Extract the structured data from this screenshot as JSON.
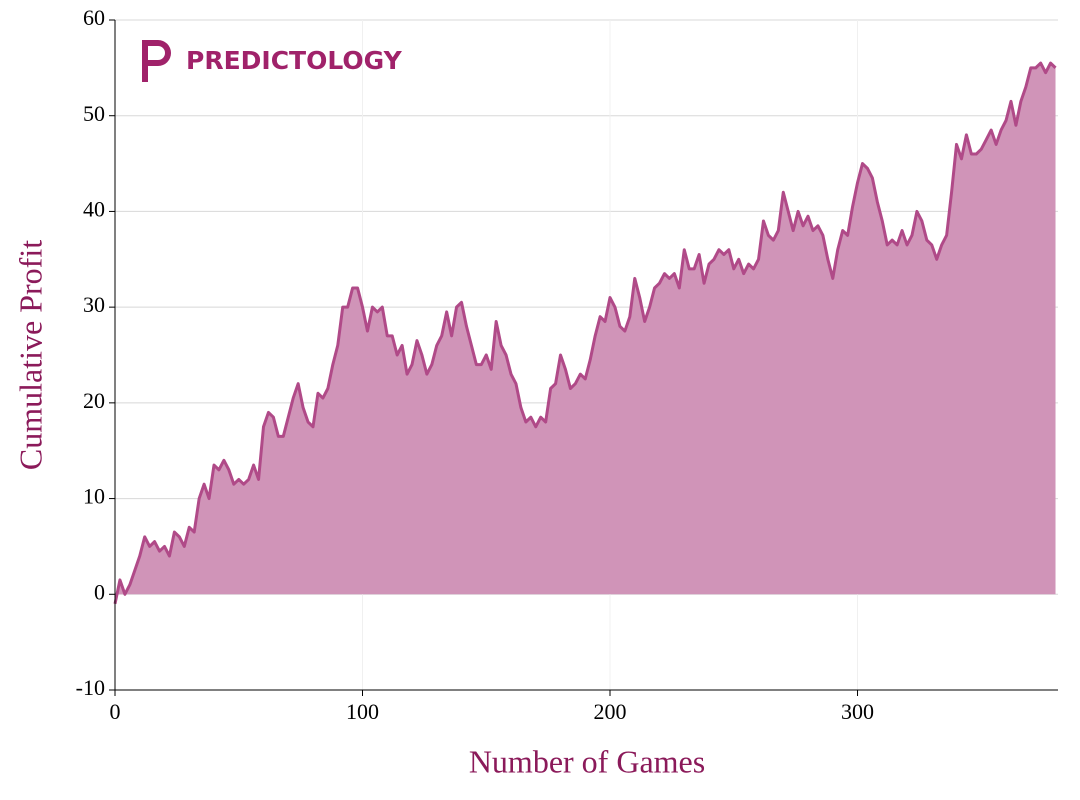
{
  "chart_data": {
    "type": "area",
    "logo": "PREDICTOLOGY",
    "xlabel": "Number of Games",
    "ylabel": "Cumulative Profit",
    "xlim": [
      0,
      381
    ],
    "ylim": [
      -10,
      60
    ],
    "xticks": [
      0,
      100,
      200,
      300
    ],
    "yticks": [
      -10,
      0,
      10,
      20,
      30,
      40,
      50,
      60
    ],
    "grid": true,
    "series": [
      {
        "name": "Cumulative Profit",
        "color": "#b04a88",
        "fill": "#d094b8",
        "x": [
          0,
          2,
          4,
          6,
          8,
          10,
          12,
          14,
          16,
          18,
          20,
          22,
          24,
          26,
          28,
          30,
          32,
          34,
          36,
          38,
          40,
          42,
          44,
          46,
          48,
          50,
          52,
          54,
          56,
          58,
          60,
          62,
          64,
          66,
          68,
          70,
          72,
          74,
          76,
          78,
          80,
          82,
          84,
          86,
          88,
          90,
          92,
          94,
          96,
          98,
          100,
          102,
          104,
          106,
          108,
          110,
          112,
          114,
          116,
          118,
          120,
          122,
          124,
          126,
          128,
          130,
          132,
          134,
          136,
          138,
          140,
          142,
          144,
          146,
          148,
          150,
          152,
          154,
          156,
          158,
          160,
          162,
          164,
          166,
          168,
          170,
          172,
          174,
          176,
          178,
          180,
          182,
          184,
          186,
          188,
          190,
          192,
          194,
          196,
          198,
          200,
          202,
          204,
          206,
          208,
          210,
          212,
          214,
          216,
          218,
          220,
          222,
          224,
          226,
          228,
          230,
          232,
          234,
          236,
          238,
          240,
          242,
          244,
          246,
          248,
          250,
          252,
          254,
          256,
          258,
          260,
          262,
          264,
          266,
          268,
          270,
          272,
          274,
          276,
          278,
          280,
          282,
          284,
          286,
          288,
          290,
          292,
          294,
          296,
          298,
          300,
          302,
          304,
          306,
          308,
          310,
          312,
          314,
          316,
          318,
          320,
          322,
          324,
          326,
          328,
          330,
          332,
          334,
          336,
          338,
          340,
          342,
          344,
          346,
          348,
          350,
          352,
          354,
          356,
          358,
          360,
          362,
          364,
          366,
          368,
          370,
          372,
          374,
          376,
          378,
          380
        ],
        "values": [
          -1,
          1.5,
          0,
          1,
          2.5,
          4,
          6,
          5,
          5.5,
          4.5,
          5,
          4,
          6.5,
          6,
          5,
          7,
          6.5,
          10,
          11.5,
          10,
          13.5,
          13,
          14,
          13,
          11.5,
          12,
          11.5,
          12,
          13.5,
          12,
          17.5,
          19,
          18.5,
          16.5,
          16.5,
          18.5,
          20.5,
          22,
          19.5,
          18,
          17.5,
          21,
          20.5,
          21.5,
          24,
          26,
          30,
          30,
          32,
          32,
          30,
          27.5,
          30,
          29.5,
          30,
          27,
          27,
          25,
          26,
          23,
          24,
          26.5,
          25,
          23,
          24,
          26,
          27,
          29.5,
          27,
          30,
          30.5,
          28,
          26,
          24,
          24,
          25,
          23.5,
          28.5,
          26,
          25,
          23,
          22,
          19.5,
          18,
          18.5,
          17.5,
          18.5,
          18,
          21.5,
          22,
          25,
          23.5,
          21.5,
          22,
          23,
          22.5,
          24.5,
          27,
          29,
          28.5,
          31,
          30,
          28,
          27.5,
          29,
          33,
          31,
          28.5,
          30,
          32,
          32.5,
          33.5,
          33,
          33.5,
          32,
          36,
          34,
          34,
          35.5,
          32.5,
          34.5,
          35,
          36,
          35.5,
          36,
          34,
          35,
          33.5,
          34.5,
          34,
          35,
          39,
          37.5,
          37,
          38,
          42,
          40,
          38,
          40,
          38.5,
          39.5,
          38,
          38.5,
          37.5,
          35,
          33,
          36,
          38,
          37.5,
          40.5,
          43,
          45,
          44.5,
          43.5,
          41,
          39,
          36.5,
          37,
          36.5,
          38,
          36.5,
          37.5,
          40,
          39,
          37,
          36.5,
          35,
          36.5,
          37.5,
          42,
          47,
          45.5,
          48,
          46,
          46,
          46.5,
          47.5,
          48.5,
          47,
          48.5,
          49.5,
          51.5,
          49,
          51.5,
          53,
          55,
          55,
          55.5,
          54.5,
          55.5,
          55
        ]
      }
    ]
  }
}
